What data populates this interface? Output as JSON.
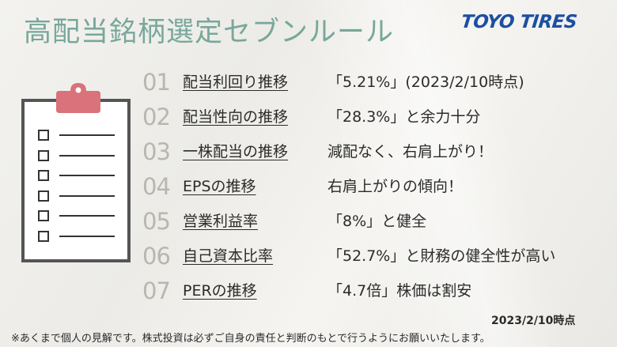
{
  "header": {
    "title": "高配当銘柄選定セブンルール",
    "brand": "TOYO TIRES"
  },
  "rules": [
    {
      "num": "01",
      "name": "配当利回り推移",
      "value": "「5.21%」(2023/2/10時点)"
    },
    {
      "num": "02",
      "name": "配当性向の推移",
      "value": "「28.3%」と余力十分"
    },
    {
      "num": "03",
      "name": "一株配当の推移",
      "value": "減配なく、右肩上がり！"
    },
    {
      "num": "04",
      "name": "EPSの推移",
      "value": "右肩上がりの傾向！"
    },
    {
      "num": "05",
      "name": "営業利益率",
      "value": "「8%」と健全"
    },
    {
      "num": "06",
      "name": "自己資本比率",
      "value": "「52.7%」と財務の健全性が高い"
    },
    {
      "num": "07",
      "name": "PERの推移",
      "value": "「4.7倍」株価は割安"
    }
  ],
  "footer": {
    "as_of": "2023/2/10時点",
    "disclaimer": "※あくまで個人の見解です。株式投資は必ずご自身の責任と判断のもとで行うようにお願いいたします。"
  },
  "colors": {
    "title": "#78a79b",
    "brand": "#1c4fa1",
    "clipboard_clip": "#d9727a",
    "clipboard_border": "#555555",
    "rule_number": "#b9b6b0"
  },
  "icons": {
    "illustration": "clipboard-checklist-icon"
  }
}
